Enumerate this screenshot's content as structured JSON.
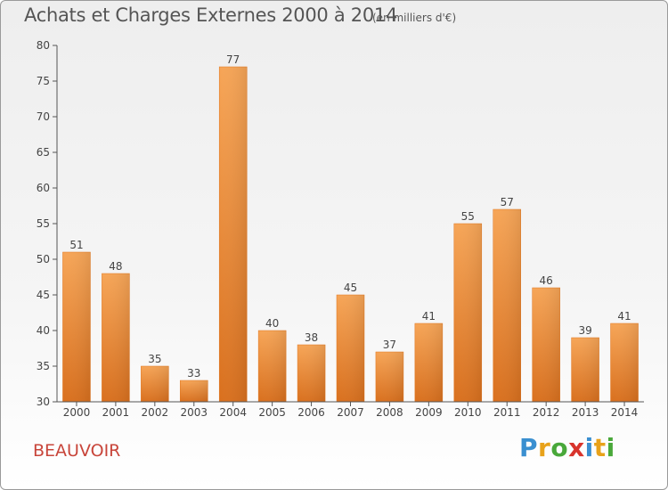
{
  "title": "Achats et Charges Externes 2000 à 2014",
  "subtitle": "(en milliers d'€)",
  "commune": "BEAUVOIR",
  "logo": {
    "letters": [
      "P",
      "r",
      "o",
      "x",
      "i",
      "t",
      "i"
    ],
    "colors": [
      "#3a8fd0",
      "#e8a21a",
      "#49a83a",
      "#d8342c",
      "#3a8fd0",
      "#e8a21a",
      "#49a83a"
    ]
  },
  "chart_data": {
    "type": "bar",
    "categories": [
      "2000",
      "2001",
      "2002",
      "2003",
      "2004",
      "2005",
      "2006",
      "2007",
      "2008",
      "2009",
      "2010",
      "2011",
      "2012",
      "2013",
      "2014"
    ],
    "values": [
      51,
      48,
      35,
      33,
      77,
      40,
      38,
      45,
      37,
      41,
      55,
      57,
      46,
      39,
      41
    ],
    "ylim": [
      30,
      80
    ],
    "yticks": [
      30,
      35,
      40,
      45,
      50,
      55,
      60,
      65,
      70,
      75,
      80
    ],
    "grid": false,
    "bar_color": "#f08a24"
  }
}
